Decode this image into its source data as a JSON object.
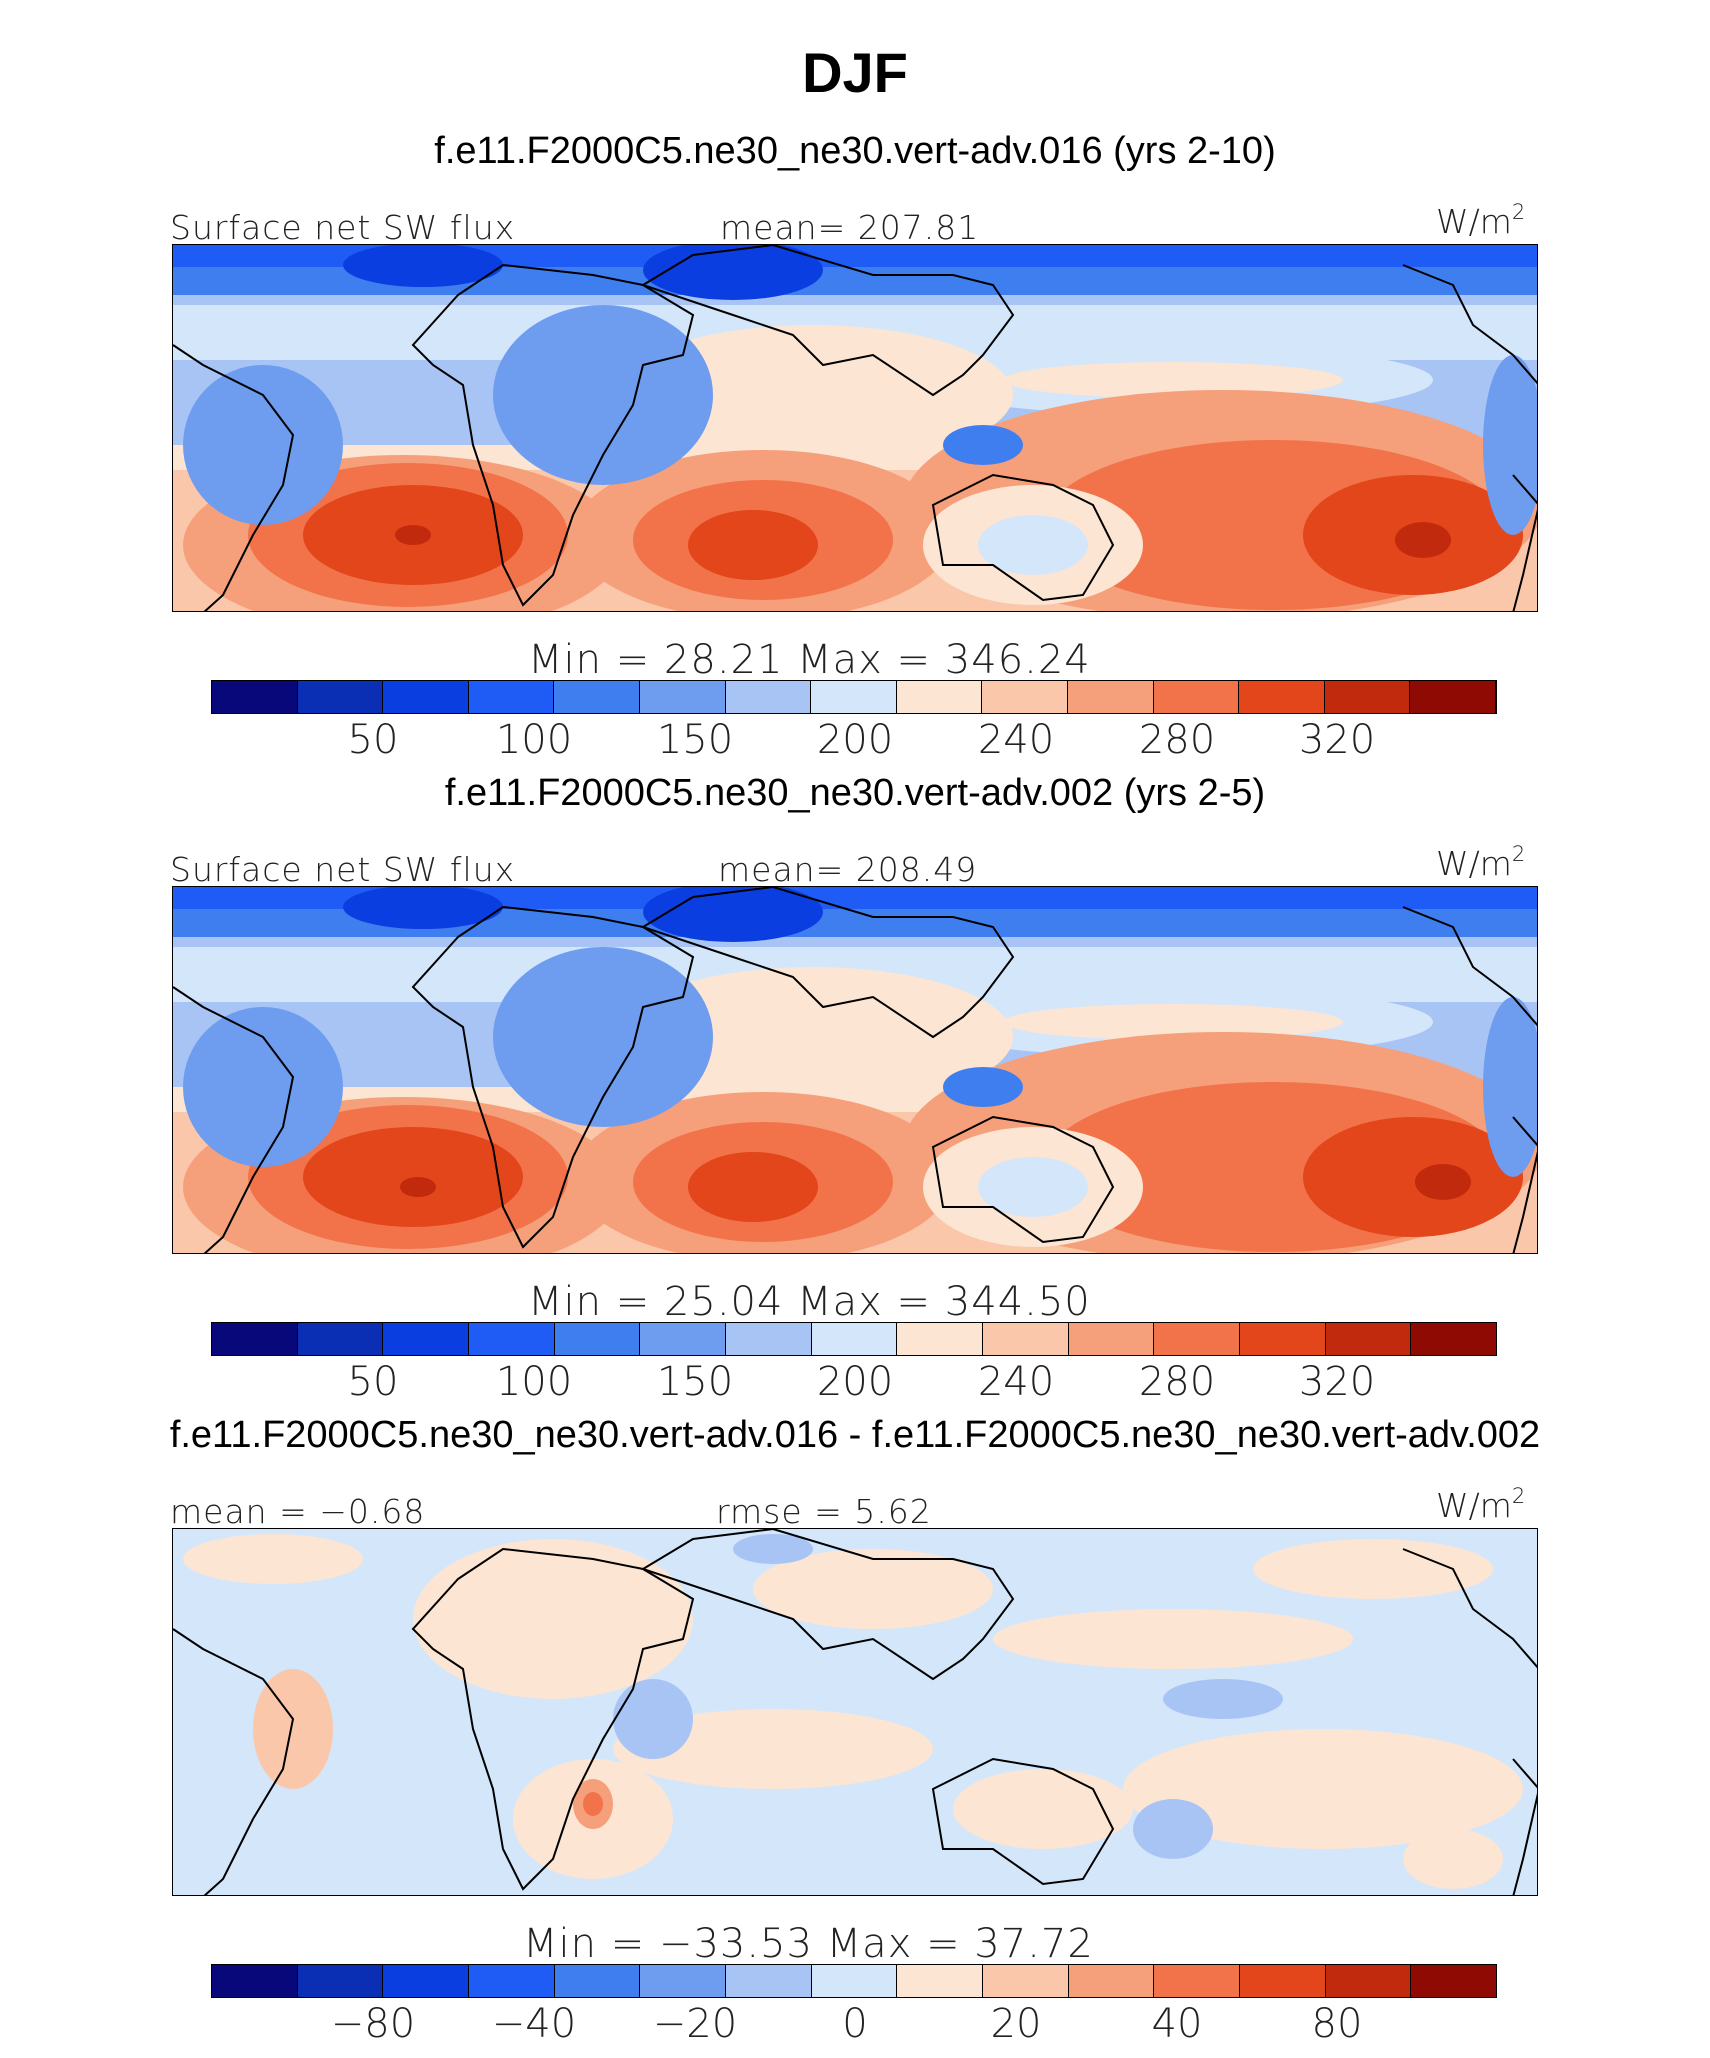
{
  "title": "DJF",
  "units": "W/m",
  "units_exp": "2",
  "colors": {
    "positive_13": [
      "#08087a",
      "#0a2fb5",
      "#0b3ee0",
      "#1e5cf5",
      "#3f7eef",
      "#6e9cef",
      "#a7c4f5",
      "#d4e6fa",
      "#fde5d3",
      "#fbc7ab",
      "#f5a07a",
      "#f2734a",
      "#e2461a",
      "#c22a0d",
      "#8e0a02"
    ]
  },
  "panels": [
    {
      "case": "f.e11.F2000C5.ne30_ne30.vert-adv.016 (yrs 2-10)",
      "left_label": "Surface net SW flux",
      "center_label": "mean= 207.81",
      "min_max": "Min =   28.21  Max  =  346.24",
      "ticks": [
        "50",
        "100",
        "150",
        "200",
        "240",
        "280",
        "320"
      ]
    },
    {
      "case": "f.e11.F2000C5.ne30_ne30.vert-adv.002 (yrs 2-5)",
      "left_label": "Surface net SW flux",
      "center_label": "mean= 208.49",
      "min_max": "Min =   25.04  Max  =  344.50",
      "ticks": [
        "50",
        "100",
        "150",
        "200",
        "240",
        "280",
        "320"
      ]
    },
    {
      "case": "f.e11.F2000C5.ne30_ne30.vert-adv.016 - f.e11.F2000C5.ne30_ne30.vert-adv.002",
      "left_label": "mean =   −0.68",
      "center_label": "rmse =     5.62",
      "min_max": "Min  = −33.53  Max  =    37.72",
      "ticks": [
        "−80",
        "−40",
        "−20",
        "0",
        "20",
        "40",
        "80"
      ]
    }
  ]
}
